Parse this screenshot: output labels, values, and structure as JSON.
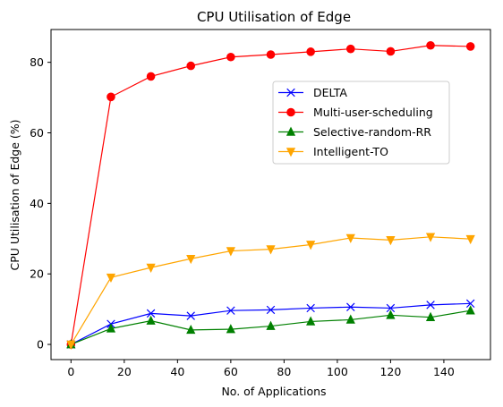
{
  "chart_data": {
    "type": "line",
    "title": "CPU Utilisation of Edge",
    "xlabel": "No. of Applications",
    "ylabel": "CPU Utilisation of Edge (%)",
    "x": [
      0,
      15,
      30,
      45,
      60,
      75,
      90,
      105,
      120,
      135,
      150
    ],
    "xlim": [
      -7.5,
      157.5
    ],
    "ylim": [
      -4.3,
      89.3
    ],
    "xticks": [
      0,
      20,
      40,
      60,
      80,
      100,
      120,
      140
    ],
    "yticks": [
      0,
      20,
      40,
      60,
      80
    ],
    "grid": false,
    "legend_position": "upper-right-center",
    "series": [
      {
        "name": "DELTA",
        "color": "#0000ff",
        "marker": "x",
        "values": [
          0,
          5.8,
          8.8,
          8.1,
          9.6,
          9.8,
          10.3,
          10.6,
          10.3,
          11.2,
          11.6
        ]
      },
      {
        "name": "Multi-user-scheduling",
        "color": "#ff0000",
        "marker": "circle",
        "values": [
          0,
          70.2,
          76.0,
          79.0,
          81.5,
          82.2,
          83.0,
          83.8,
          83.1,
          84.8,
          84.5
        ]
      },
      {
        "name": "Selective-random-RR",
        "color": "#008000",
        "marker": "triangle-up",
        "values": [
          0,
          4.5,
          6.7,
          4.1,
          4.3,
          5.2,
          6.5,
          7.0,
          8.3,
          7.7,
          9.6
        ]
      },
      {
        "name": "Intelligent-TO",
        "color": "#ffa500",
        "marker": "triangle-down",
        "values": [
          0,
          19.0,
          21.8,
          24.3,
          26.5,
          27.0,
          28.3,
          30.2,
          29.6,
          30.5,
          29.9
        ]
      }
    ]
  }
}
